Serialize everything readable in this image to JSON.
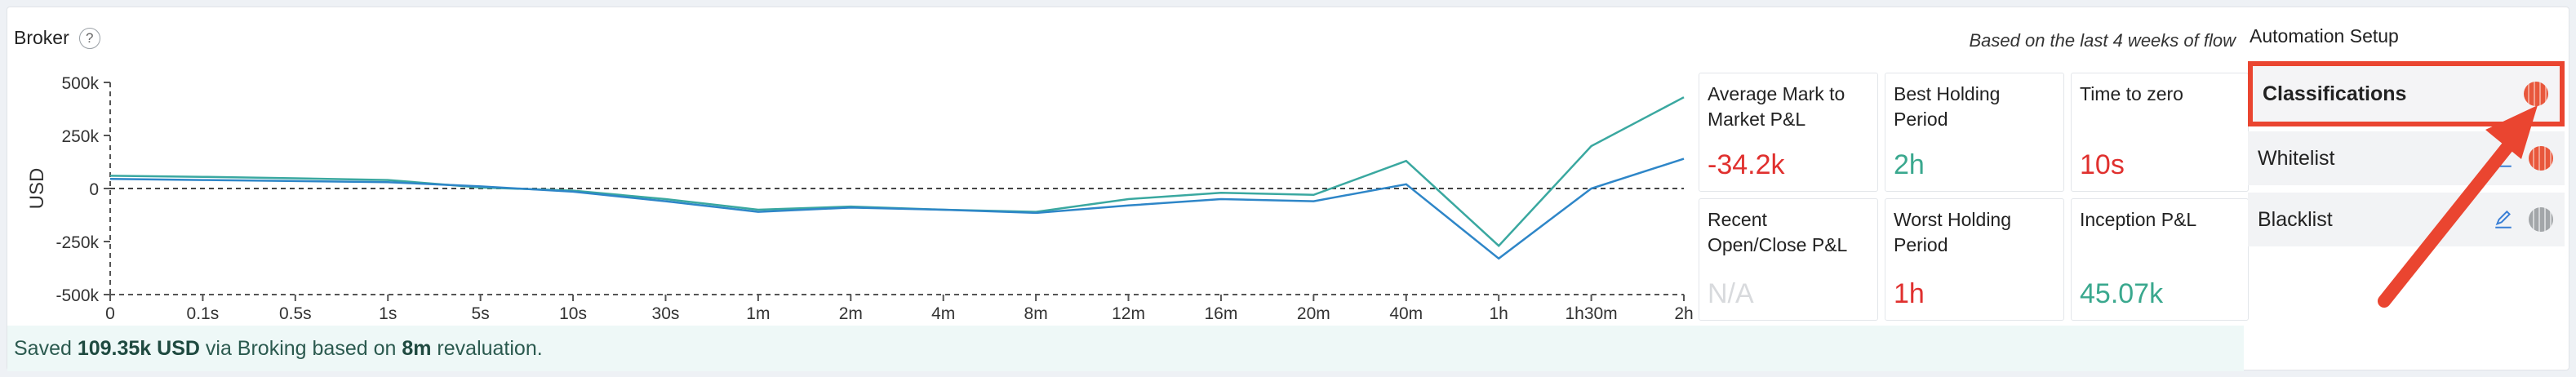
{
  "broker": {
    "title": "Broker",
    "help": "?",
    "based_on": "Based on the last 4 weeks of flow"
  },
  "chart_data": {
    "type": "line",
    "ylabel": "USD",
    "xlabel": "",
    "ylim": [
      -500000,
      500000
    ],
    "y_ticks": [
      "500k",
      "250k",
      "0",
      "-250k",
      "-500k"
    ],
    "categories": [
      "0",
      "0.1s",
      "0.5s",
      "1s",
      "5s",
      "10s",
      "30s",
      "1m",
      "2m",
      "4m",
      "8m",
      "12m",
      "16m",
      "20m",
      "40m",
      "1h",
      "1h30m",
      "2h"
    ],
    "series": [
      {
        "color": "#3aa8a0",
        "values": [
          60000,
          55000,
          48000,
          40000,
          5000,
          -10000,
          -50000,
          -100000,
          -85000,
          -100000,
          -110000,
          -50000,
          -20000,
          -30000,
          130000,
          -270000,
          200000,
          430000
        ]
      },
      {
        "color": "#2e86c8",
        "values": [
          45000,
          40000,
          35000,
          30000,
          10000,
          -15000,
          -60000,
          -110000,
          -90000,
          -100000,
          -115000,
          -80000,
          -50000,
          -60000,
          20000,
          -330000,
          0,
          140000
        ]
      }
    ],
    "grid": false
  },
  "kpis": {
    "avg_mtm": {
      "label": "Average Mark to Market P&L",
      "value": "-34.2k"
    },
    "best_holding": {
      "label": "Best Holding Period",
      "value": "2h"
    },
    "time_to_zero": {
      "label": "Time to zero",
      "value": "10s"
    },
    "recent_oc": {
      "label": "Recent Open/Close P&L",
      "value": "N/A"
    },
    "worst_holding": {
      "label": "Worst Holding Period",
      "value": "1h"
    },
    "inception": {
      "label": "Inception P&L",
      "value": "45.07k"
    }
  },
  "saved": {
    "prefix": "Saved ",
    "amount": "109.35k USD",
    "middle": " via Broking based on ",
    "period": "8m",
    "suffix": " revaluation."
  },
  "automation": {
    "title": "Automation Setup",
    "items": [
      {
        "label": "Classifications",
        "enabled": true
      },
      {
        "label": "Whitelist",
        "enabled": true
      },
      {
        "label": "Blacklist",
        "enabled": false
      }
    ]
  },
  "colors": {
    "accent_red": "#ea4530",
    "positive": "#3aa88e",
    "negative": "#e0302e"
  }
}
